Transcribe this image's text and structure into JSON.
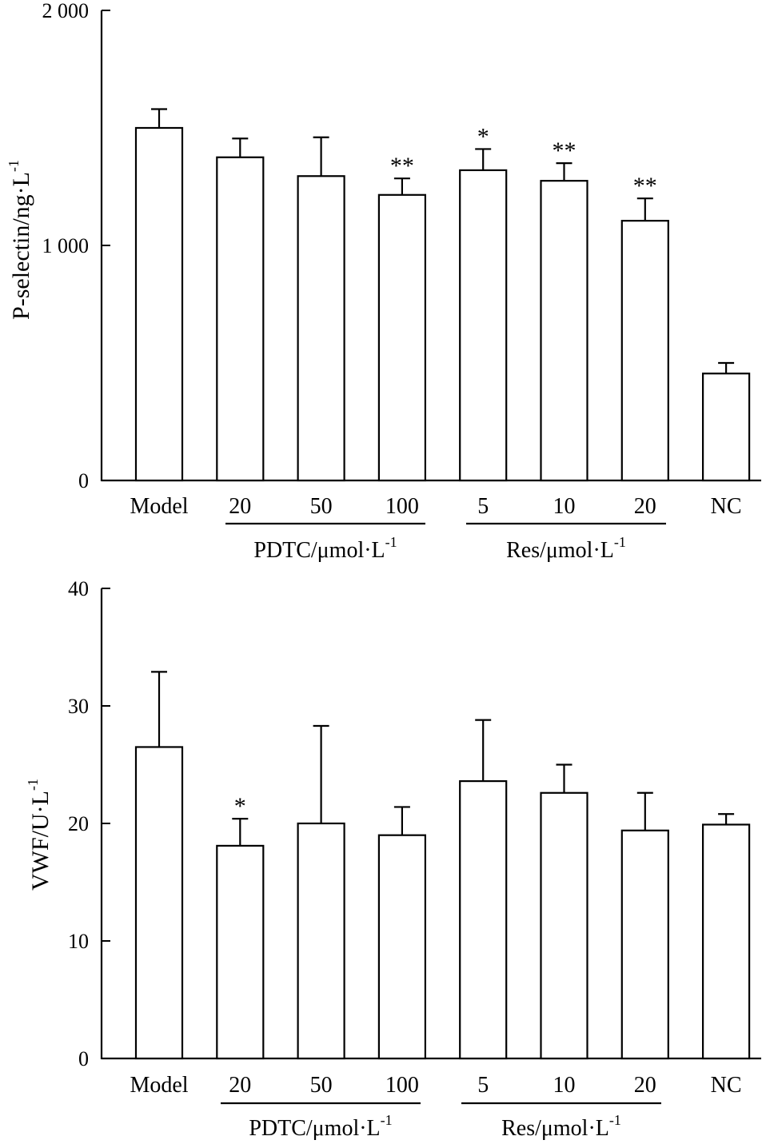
{
  "chart_data": [
    {
      "type": "bar",
      "title": "",
      "ylabel": "P-selectin/ng·L",
      "ylabel_sup": "-1",
      "ylim": [
        0,
        2000
      ],
      "yticks": [
        0,
        1000,
        2000
      ],
      "ytick_labels": [
        "0",
        "1 000",
        "2 000"
      ],
      "categories": [
        "Model",
        "20",
        "50",
        "100",
        "5",
        "10",
        "20",
        "NC"
      ],
      "values": [
        1500,
        1375,
        1295,
        1215,
        1320,
        1275,
        1105,
        455
      ],
      "errors": [
        80,
        80,
        165,
        70,
        90,
        75,
        95,
        45
      ],
      "significance": [
        "",
        "",
        "",
        "**",
        "*",
        "**",
        "**",
        ""
      ],
      "groups": [
        {
          "label": "PDTC/μmol·L",
          "label_sup": "-1",
          "from": 1,
          "to": 3
        },
        {
          "label": "Res/μmol·L",
          "label_sup": "-1",
          "from": 4,
          "to": 6
        }
      ]
    },
    {
      "type": "bar",
      "title": "",
      "ylabel": "VWF/U·L",
      "ylabel_sup": "-1",
      "ylim": [
        0,
        40
      ],
      "yticks": [
        0,
        10,
        20,
        30,
        40
      ],
      "ytick_labels": [
        "0",
        "10",
        "20",
        "30",
        "40"
      ],
      "categories": [
        "Model",
        "20",
        "50",
        "100",
        "5",
        "10",
        "20",
        "NC"
      ],
      "values": [
        26.5,
        18.1,
        20.0,
        19.0,
        23.6,
        22.6,
        19.4,
        19.9
      ],
      "errors": [
        6.4,
        2.3,
        8.3,
        2.4,
        5.2,
        2.4,
        3.2,
        0.9
      ],
      "significance": [
        "",
        "*",
        "",
        "",
        "",
        "",
        "",
        ""
      ],
      "groups": [
        {
          "label": "PDTC/μmol·L",
          "label_sup": "-1",
          "from": 1,
          "to": 3
        },
        {
          "label": "Res/μmol·L",
          "label_sup": "-1",
          "from": 4,
          "to": 6
        }
      ]
    }
  ]
}
